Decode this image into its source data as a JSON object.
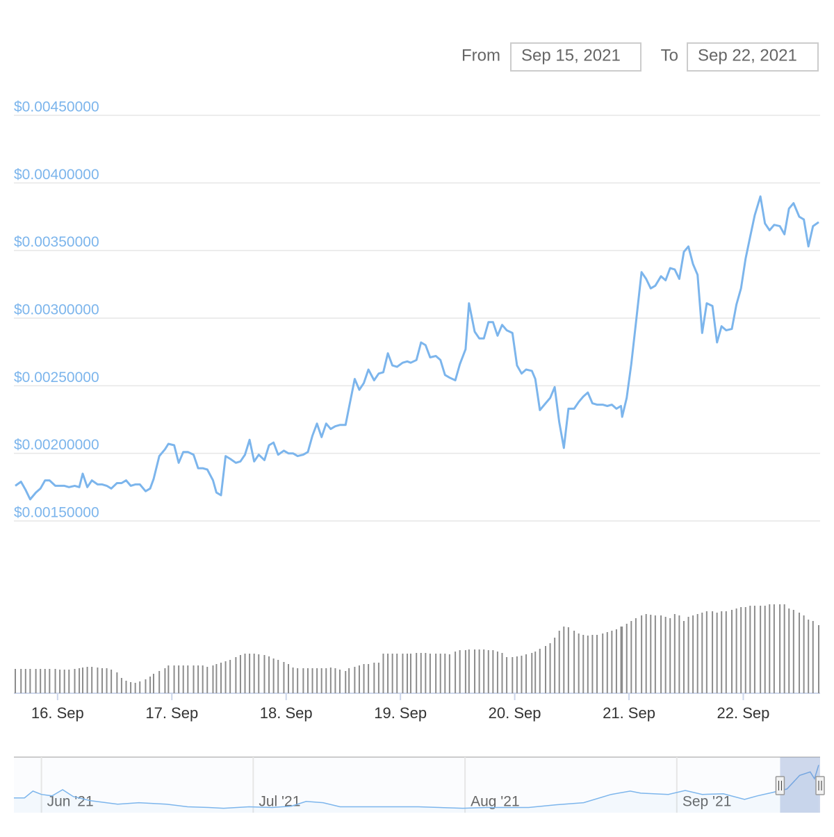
{
  "range_selector": {
    "from_label": "From",
    "from_date": "Sep 15, 2021",
    "to_label": "To",
    "to_date": "Sep 22, 2021"
  },
  "chart_data": [
    {
      "type": "line",
      "x": [
        15.63,
        15.68,
        15.72,
        15.76,
        15.81,
        15.85,
        15.89,
        15.93,
        15.98,
        16.02,
        16.06,
        16.1,
        16.15,
        16.19,
        16.22,
        16.26,
        16.3,
        16.35,
        16.39,
        16.43,
        16.47,
        16.52,
        16.56,
        16.6,
        16.64,
        16.68,
        16.72,
        16.77,
        16.81,
        16.84,
        16.89,
        16.94,
        16.97,
        17.02,
        17.06,
        17.1,
        17.14,
        17.19,
        17.23,
        17.27,
        17.31,
        17.36,
        17.39,
        17.43,
        17.47,
        17.51,
        17.56,
        17.6,
        17.64,
        17.68,
        17.72,
        17.76,
        17.81,
        17.85,
        17.89,
        17.93,
        17.98,
        18.02,
        18.06,
        18.1,
        18.15,
        18.19,
        18.23,
        18.27,
        18.31,
        18.35,
        18.39,
        18.43,
        18.47,
        18.52,
        18.55,
        18.6,
        18.64,
        18.68,
        18.72,
        18.77,
        18.81,
        18.85,
        18.89,
        18.93,
        18.97,
        19.02,
        19.06,
        19.09,
        19.14,
        19.18,
        19.22,
        19.26,
        19.31,
        19.35,
        19.39,
        19.43,
        19.48,
        19.52,
        19.57,
        19.6,
        19.65,
        19.69,
        19.73,
        19.77,
        19.81,
        19.85,
        19.89,
        19.93,
        19.98,
        20.02,
        20.06,
        20.1,
        20.15,
        20.18,
        20.22,
        20.27,
        20.31,
        20.35,
        20.39,
        20.43,
        20.47,
        20.52,
        20.56,
        20.6,
        20.64,
        20.68,
        20.72,
        20.77,
        20.81,
        20.85,
        20.89,
        20.93,
        20.94,
        20.98,
        21.02,
        21.06,
        21.11,
        21.15,
        21.19,
        21.23,
        21.28,
        21.32,
        21.36,
        21.4,
        21.44,
        21.48,
        21.52,
        21.56,
        21.6,
        21.64,
        21.68,
        21.73,
        21.77,
        21.81,
        21.85,
        21.9,
        21.94,
        21.98,
        22.02,
        22.06,
        22.1,
        22.15,
        22.19,
        22.23,
        22.27,
        22.32,
        22.36,
        22.4,
        22.44,
        22.49,
        22.53,
        22.57,
        22.61,
        22.66
      ],
      "series": [
        {
          "type": "line",
          "color": "#7cb5ec",
          "values": [
            0.00176,
            0.00179,
            0.00173,
            0.00166,
            0.00171,
            0.00174,
            0.0018,
            0.0018,
            0.00176,
            0.00176,
            0.00176,
            0.00175,
            0.00176,
            0.00175,
            0.00185,
            0.00175,
            0.0018,
            0.00177,
            0.00177,
            0.00176,
            0.00174,
            0.00178,
            0.00178,
            0.0018,
            0.00176,
            0.00177,
            0.00177,
            0.00172,
            0.00174,
            0.00181,
            0.00198,
            0.00203,
            0.00207,
            0.00206,
            0.00193,
            0.00201,
            0.00201,
            0.00199,
            0.00189,
            0.00189,
            0.00188,
            0.0018,
            0.00171,
            0.00169,
            0.00198,
            0.00196,
            0.00193,
            0.00194,
            0.00199,
            0.0021,
            0.00194,
            0.00199,
            0.00195,
            0.00206,
            0.00208,
            0.00199,
            0.00202,
            0.002,
            0.002,
            0.00198,
            0.00199,
            0.00201,
            0.00213,
            0.00222,
            0.00212,
            0.00222,
            0.00218,
            0.0022,
            0.00221,
            0.00221,
            0.00234,
            0.00255,
            0.00247,
            0.00252,
            0.00262,
            0.00254,
            0.00259,
            0.0026,
            0.00274,
            0.00265,
            0.00264,
            0.00267,
            0.00268,
            0.00267,
            0.00269,
            0.00282,
            0.0028,
            0.00271,
            0.00272,
            0.00269,
            0.00258,
            0.00256,
            0.00254,
            0.00266,
            0.00277,
            0.00311,
            0.0029,
            0.00285,
            0.00285,
            0.00297,
            0.00297,
            0.00287,
            0.00295,
            0.00291,
            0.00289,
            0.00265,
            0.00259,
            0.00262,
            0.00261,
            0.00255,
            0.00232,
            0.00237,
            0.00241,
            0.00249,
            0.00223,
            0.00204,
            0.00233,
            0.00233,
            0.00238,
            0.00242,
            0.00245,
            0.00237,
            0.00236,
            0.00236,
            0.00235,
            0.00236,
            0.00233,
            0.00235,
            0.00227,
            0.00241,
            0.00266,
            0.00296,
            0.00334,
            0.00329,
            0.00322,
            0.00324,
            0.00331,
            0.00328,
            0.00337,
            0.00336,
            0.00329,
            0.00349,
            0.00353,
            0.0034,
            0.00332,
            0.00289,
            0.00311,
            0.00309,
            0.00282,
            0.00294,
            0.00291,
            0.00292,
            0.0031,
            0.00322,
            0.00344,
            0.0036,
            0.00376,
            0.0039,
            0.0037,
            0.00365,
            0.00369,
            0.00368,
            0.00362,
            0.00381,
            0.00385,
            0.00375,
            0.00373,
            0.00353,
            0.00368,
            0.00371
          ]
        },
        {
          "type": "bar",
          "axis": "y2",
          "color": "#8c8c8c",
          "values": [
            35,
            35,
            35,
            35,
            35,
            35,
            35,
            35,
            35,
            34,
            34,
            34,
            35,
            36,
            37,
            38,
            38,
            37,
            36,
            36,
            34,
            30,
            22,
            18,
            16,
            15,
            17,
            20,
            24,
            28,
            32,
            36,
            40,
            40,
            40,
            40,
            40,
            40,
            40,
            40,
            38,
            40,
            42,
            44,
            46,
            48,
            52,
            55,
            57,
            57,
            57,
            56,
            55,
            53,
            50,
            48,
            45,
            42,
            37,
            36,
            36,
            36,
            36,
            36,
            36,
            36,
            37,
            36,
            34,
            32,
            36,
            38,
            40,
            42,
            42,
            44,
            44,
            57,
            57,
            57,
            57,
            57,
            57,
            57,
            58,
            58,
            58,
            57,
            57,
            57,
            57,
            56,
            60,
            62,
            62,
            63,
            63,
            63,
            63,
            62,
            62,
            60,
            58,
            52,
            52,
            53,
            54,
            56,
            58,
            60,
            64,
            68,
            72,
            80,
            90,
            96,
            95,
            90,
            86,
            84,
            83,
            84,
            84,
            86,
            88,
            90,
            92,
            96,
            96,
            100,
            104,
            108,
            112,
            114,
            113,
            112,
            112,
            110,
            108,
            114,
            112,
            104,
            110,
            112,
            114,
            116,
            118,
            118,
            116,
            118,
            118,
            120,
            122,
            124,
            124,
            126,
            126,
            126,
            126,
            128,
            128,
            128,
            128,
            122,
            120,
            116,
            112,
            106,
            104,
            98
          ]
        }
      ],
      "xlim": [
        15.63,
        22.66
      ],
      "xticks": [
        {
          "value": 16,
          "label": "16. Sep"
        },
        {
          "value": 17,
          "label": "17. Sep"
        },
        {
          "value": 18,
          "label": "18. Sep"
        },
        {
          "value": 19,
          "label": "19. Sep"
        },
        {
          "value": 20,
          "label": "20. Sep"
        },
        {
          "value": 21,
          "label": "21. Sep"
        },
        {
          "value": 22,
          "label": "22. Sep"
        }
      ],
      "ylim": [
        0.0015,
        0.0045
      ],
      "yticks": [
        {
          "value": 0.0045,
          "label": "$0.00450000"
        },
        {
          "value": 0.004,
          "label": "$0.00400000"
        },
        {
          "value": 0.0035,
          "label": "$0.00350000"
        },
        {
          "value": 0.003,
          "label": "$0.00300000"
        },
        {
          "value": 0.0025,
          "label": "$0.00250000"
        },
        {
          "value": 0.002,
          "label": "$0.00200000"
        },
        {
          "value": 0.0015,
          "label": "$0.00150000"
        }
      ],
      "y2lim": [
        0,
        130
      ],
      "grid": true
    },
    {
      "type": "area",
      "color": "#7cb5ec",
      "x": [
        5.87,
        5.92,
        5.96,
        6.0,
        6.05,
        6.1,
        6.15,
        6.23,
        6.36,
        6.46,
        6.59,
        6.69,
        6.79,
        6.86,
        6.98,
        7.09,
        7.18,
        7.25,
        7.33,
        7.41,
        7.58,
        7.78,
        7.99,
        8.1,
        8.3,
        8.43,
        8.56,
        8.69,
        8.78,
        8.83,
        8.96,
        9.04,
        9.12,
        9.22,
        9.32,
        9.38,
        9.45,
        9.52,
        9.58,
        9.63,
        9.65,
        9.67
      ],
      "values": [
        0.00163,
        0.00163,
        0.00206,
        0.00185,
        0.00176,
        0.00215,
        0.00172,
        0.00146,
        0.00124,
        0.00133,
        0.00124,
        0.00107,
        0.00103,
        0.00098,
        0.00107,
        0.00103,
        0.00111,
        0.00141,
        0.00133,
        0.00107,
        0.00107,
        0.00107,
        0.00098,
        0.00103,
        0.00103,
        0.0012,
        0.00133,
        0.00185,
        0.00206,
        0.00193,
        0.00185,
        0.0021,
        0.00185,
        0.00189,
        0.00154,
        0.00176,
        0.00197,
        0.00219,
        0.00305,
        0.00327,
        0.00284,
        0.0037
      ],
      "xlim": [
        5.87,
        9.67
      ],
      "ylim": [
        0.0007,
        0.0042
      ],
      "xticks": [
        {
          "value": 6,
          "label": "Jun '21"
        },
        {
          "value": 7,
          "label": "Jul '21"
        },
        {
          "value": 8,
          "label": "Aug '21"
        },
        {
          "value": 9,
          "label": "Sep '21"
        }
      ]
    }
  ]
}
